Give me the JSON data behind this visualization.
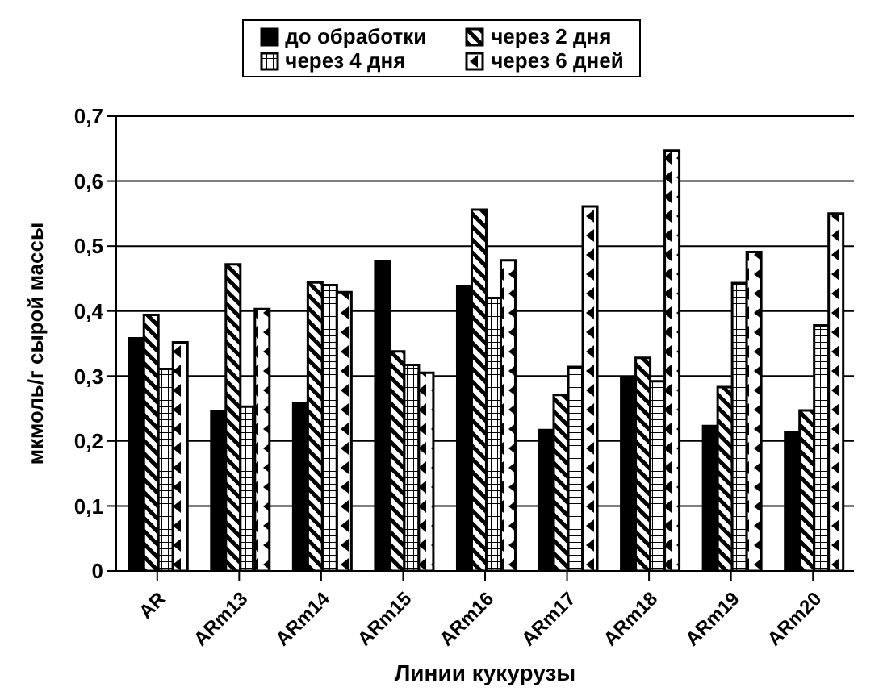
{
  "chart_data": {
    "type": "bar",
    "xlabel": "Линии кукурузы",
    "ylabel": "мкмоль/г сырой массы",
    "categories": [
      "AR",
      "ARm13",
      "ARm14",
      "ARm15",
      "ARm16",
      "ARm17",
      "ARm18",
      "ARm19",
      "ARm20"
    ],
    "series": [
      {
        "name": "до обработки",
        "color": "#000000",
        "values": [
          0.358,
          0.245,
          0.258,
          0.477,
          0.438,
          0.217,
          0.296,
          0.223,
          0.213
        ]
      },
      {
        "name": "через 2 дня",
        "color": "#000000",
        "values": [
          0.394,
          0.472,
          0.444,
          0.338,
          0.556,
          0.271,
          0.328,
          0.283,
          0.247
        ]
      },
      {
        "name": "через 4 дня",
        "color": "#000000",
        "values": [
          0.311,
          0.253,
          0.44,
          0.317,
          0.42,
          0.314,
          0.292,
          0.443,
          0.378
        ]
      },
      {
        "name": "через 6 дней",
        "color": "#000000",
        "values": [
          0.352,
          0.403,
          0.429,
          0.305,
          0.478,
          0.561,
          0.647,
          0.491,
          0.55
        ]
      }
    ],
    "ylim": [
      0,
      0.7
    ],
    "yticks": [
      {
        "value": 0,
        "label": "0"
      },
      {
        "value": 0.1,
        "label": "0,1"
      },
      {
        "value": 0.2,
        "label": "0,2"
      },
      {
        "value": 0.3,
        "label": "0,3"
      },
      {
        "value": 0.4,
        "label": "0,4"
      },
      {
        "value": 0.5,
        "label": "0,5"
      },
      {
        "value": 0.6,
        "label": "0,6"
      },
      {
        "value": 0.7,
        "label": "0,7"
      }
    ],
    "grid": "y",
    "legend": "top"
  }
}
